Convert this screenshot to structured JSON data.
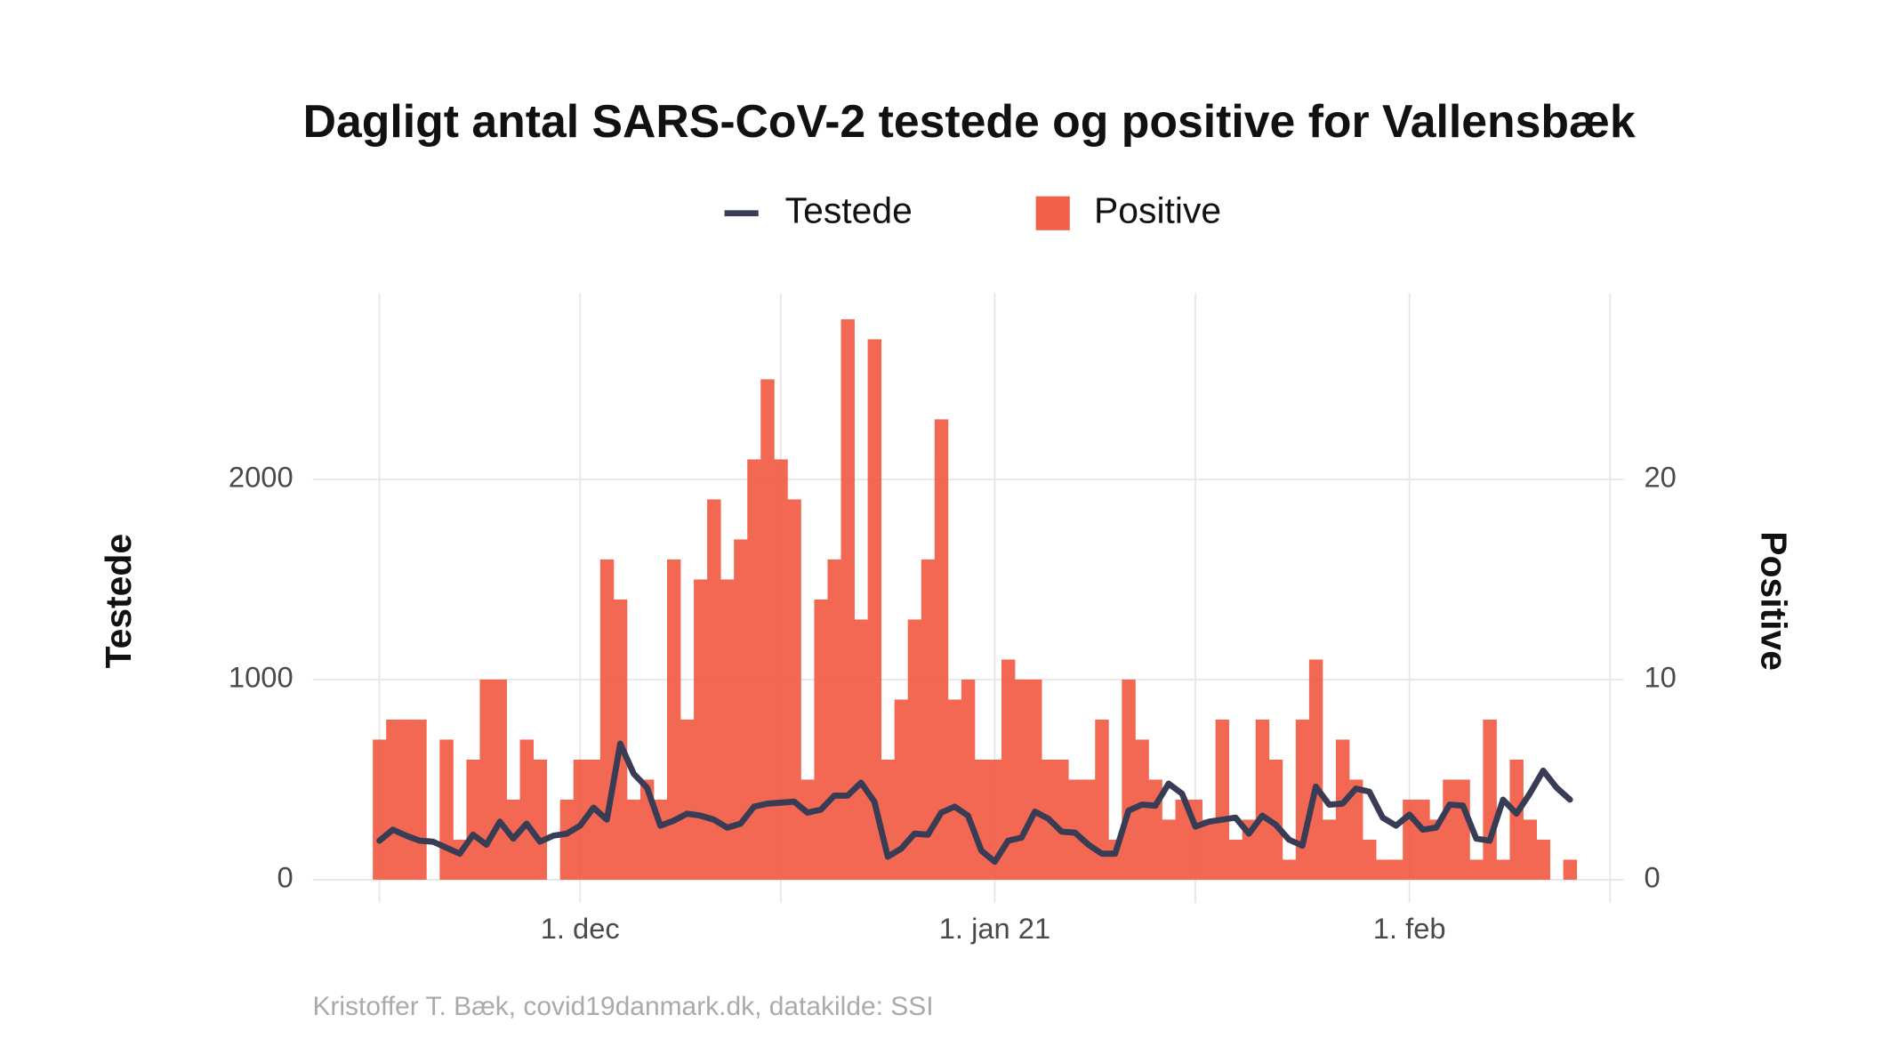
{
  "chart_data": {
    "type": "combo",
    "title": "Dagligt antal SARS-CoV-2 testede og positive for Vallensbæk",
    "ylabel": "Testede",
    "y2label": "Positive",
    "caption": "Kristoffer T. Bæk, covid19danmark.dk, datakilde: SSI",
    "x": [
      "2020-11-16",
      "2020-11-17",
      "2020-11-18",
      "2020-11-19",
      "2020-11-20",
      "2020-11-21",
      "2020-11-22",
      "2020-11-23",
      "2020-11-24",
      "2020-11-25",
      "2020-11-26",
      "2020-11-27",
      "2020-11-28",
      "2020-11-29",
      "2020-11-30",
      "2020-12-01",
      "2020-12-02",
      "2020-12-03",
      "2020-12-04",
      "2020-12-05",
      "2020-12-06",
      "2020-12-07",
      "2020-12-08",
      "2020-12-09",
      "2020-12-10",
      "2020-12-11",
      "2020-12-12",
      "2020-12-13",
      "2020-12-14",
      "2020-12-15",
      "2020-12-16",
      "2020-12-17",
      "2020-12-18",
      "2020-12-19",
      "2020-12-20",
      "2020-12-21",
      "2020-12-22",
      "2020-12-23",
      "2020-12-24",
      "2020-12-25",
      "2020-12-26",
      "2020-12-27",
      "2020-12-28",
      "2020-12-29",
      "2020-12-30",
      "2020-12-31",
      "2021-01-01",
      "2021-01-02",
      "2021-01-03",
      "2021-01-04",
      "2021-01-05",
      "2021-01-06",
      "2021-01-07",
      "2021-01-08",
      "2021-01-09",
      "2021-01-10",
      "2021-01-11",
      "2021-01-12",
      "2021-01-13",
      "2021-01-14",
      "2021-01-15",
      "2021-01-16",
      "2021-01-17",
      "2021-01-18",
      "2021-01-19",
      "2021-01-20",
      "2021-01-21",
      "2021-01-22",
      "2021-01-23",
      "2021-01-24",
      "2021-01-25",
      "2021-01-26",
      "2021-01-27",
      "2021-01-28",
      "2021-01-29",
      "2021-01-30",
      "2021-01-31",
      "2021-02-01",
      "2021-02-02",
      "2021-02-03",
      "2021-02-04",
      "2021-02-05",
      "2021-02-06",
      "2021-02-07",
      "2021-02-08",
      "2021-02-09",
      "2021-02-10",
      "2021-02-11",
      "2021-02-12",
      "2021-02-13"
    ],
    "series": [
      {
        "name": "Testede",
        "type": "line",
        "color": "#383c55",
        "values": [
          195,
          250,
          220,
          195,
          190,
          160,
          130,
          225,
          175,
          290,
          205,
          280,
          190,
          220,
          230,
          270,
          360,
          300,
          680,
          530,
          460,
          270,
          295,
          330,
          320,
          300,
          260,
          280,
          365,
          380,
          385,
          390,
          335,
          350,
          420,
          420,
          485,
          390,
          115,
          155,
          230,
          225,
          335,
          365,
          320,
          145,
          90,
          195,
          210,
          340,
          305,
          240,
          235,
          175,
          130,
          130,
          345,
          375,
          370,
          480,
          430,
          265,
          290,
          300,
          310,
          230,
          320,
          275,
          200,
          170,
          465,
          375,
          380,
          455,
          440,
          310,
          270,
          325,
          250,
          260,
          375,
          370,
          205,
          195,
          400,
          330,
          430,
          545,
          460,
          400
        ]
      },
      {
        "name": "Positive",
        "type": "bar",
        "axis": "y2",
        "color": "#f26049",
        "values": [
          7,
          8,
          8,
          8,
          0,
          7,
          2,
          6,
          10,
          10,
          4,
          7,
          6,
          0,
          4,
          6,
          6,
          16,
          14,
          4,
          5,
          4,
          16,
          8,
          15,
          19,
          15,
          17,
          21,
          25,
          21,
          19,
          5,
          14,
          16,
          28,
          13,
          27,
          6,
          9,
          13,
          16,
          23,
          9,
          10,
          6,
          6,
          11,
          10,
          10,
          6,
          6,
          5,
          5,
          8,
          2,
          10,
          7,
          5,
          3,
          4,
          4,
          3,
          8,
          2,
          3,
          8,
          6,
          1,
          8,
          11,
          3,
          7,
          5,
          2,
          1,
          1,
          4,
          4,
          3,
          5,
          5,
          1,
          8,
          1,
          6,
          3,
          2,
          0,
          1
        ]
      }
    ],
    "xlim": [
      "2020-11-11",
      "2021-02-17"
    ],
    "xticks": [
      {
        "value": "2020-12-01",
        "label": "1. dec"
      },
      {
        "value": "2021-01-01",
        "label": "1. jan 21"
      },
      {
        "value": "2021-02-01",
        "label": "1. feb"
      }
    ],
    "x_minor_ticks": [
      "2020-11-16",
      "2020-12-16",
      "2021-01-16",
      "2021-02-16"
    ],
    "ylim": [
      -115,
      2930
    ],
    "yticks": [
      0,
      1000,
      2000
    ],
    "y2lim": [
      -1.15,
      29.3
    ],
    "y2ticks": [
      0,
      10,
      20
    ],
    "grid": true,
    "legend": "top"
  }
}
